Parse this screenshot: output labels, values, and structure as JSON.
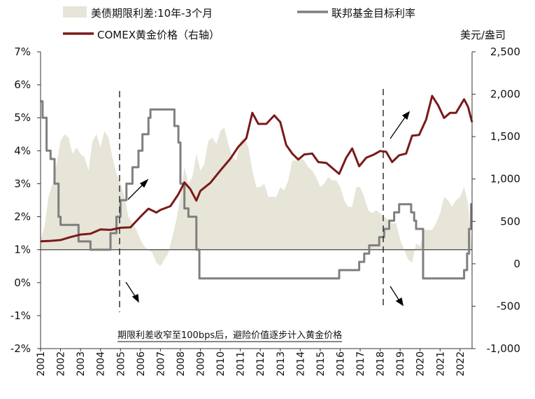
{
  "chart_data": {
    "type": "area+line",
    "title": "",
    "left_axis": {
      "ticks": [
        "-2%",
        "-1%",
        "0%",
        "1%",
        "2%",
        "3%",
        "4%",
        "5%",
        "6%",
        "7%"
      ],
      "values": [
        -2,
        -1,
        0,
        1,
        2,
        3,
        4,
        5,
        6,
        7
      ],
      "range": [
        -2,
        7
      ]
    },
    "right_axis": {
      "unit_label": "美元/盎司",
      "ticks": [
        "-1,000",
        "-500",
        "0",
        "500",
        "1,000",
        "1,500",
        "2,000",
        "2,500"
      ],
      "values": [
        -1000,
        -500,
        0,
        500,
        1000,
        1500,
        2000,
        2500
      ],
      "range": [
        -1000,
        2500
      ]
    },
    "x_axis": {
      "categories": [
        "2001",
        "2002",
        "2003",
        "2004",
        "2005",
        "2006",
        "2007",
        "2008",
        "2009",
        "2010",
        "2011",
        "2012",
        "2013",
        "2014",
        "2015",
        "2016",
        "2017",
        "2018",
        "2019",
        "2020",
        "2021",
        "2022"
      ],
      "range": [
        2001,
        2022.6
      ]
    },
    "legend": {
      "spread": "美债期限利差:10年-3个月",
      "fed": "联邦基金目标利率",
      "gold": "COMEX黄金价格（右轴）"
    },
    "annotation": "期限利差收窄至100bps后，避险价值逐步计入黄金价格",
    "series": [
      {
        "name": "美债期限利差:10年-3个月",
        "axis": "left",
        "style": "area",
        "color": "#e7e4d8",
        "points": [
          [
            2001.0,
            0.3
          ],
          [
            2001.2,
            0.7
          ],
          [
            2001.4,
            1.6
          ],
          [
            2001.6,
            2.0
          ],
          [
            2001.8,
            2.6
          ],
          [
            2002.0,
            3.3
          ],
          [
            2002.2,
            3.5
          ],
          [
            2002.4,
            3.4
          ],
          [
            2002.6,
            2.9
          ],
          [
            2002.8,
            3.1
          ],
          [
            2003.0,
            2.9
          ],
          [
            2003.2,
            2.8
          ],
          [
            2003.4,
            2.4
          ],
          [
            2003.6,
            3.3
          ],
          [
            2003.8,
            3.5
          ],
          [
            2004.0,
            3.1
          ],
          [
            2004.2,
            3.6
          ],
          [
            2004.4,
            3.4
          ],
          [
            2004.6,
            2.8
          ],
          [
            2004.8,
            2.3
          ],
          [
            2005.0,
            2.0
          ],
          [
            2005.2,
            1.6
          ],
          [
            2005.4,
            1.0
          ],
          [
            2005.6,
            0.8
          ],
          [
            2005.8,
            0.6
          ],
          [
            2006.0,
            0.3
          ],
          [
            2006.2,
            0.1
          ],
          [
            2006.4,
            0.0
          ],
          [
            2006.6,
            -0.1
          ],
          [
            2006.8,
            -0.4
          ],
          [
            2007.0,
            -0.5
          ],
          [
            2007.2,
            -0.3
          ],
          [
            2007.4,
            -0.1
          ],
          [
            2007.6,
            0.4
          ],
          [
            2007.8,
            0.9
          ],
          [
            2008.0,
            1.6
          ],
          [
            2008.2,
            2.5
          ],
          [
            2008.4,
            2.0
          ],
          [
            2008.6,
            2.2
          ],
          [
            2008.8,
            2.9
          ],
          [
            2009.0,
            2.4
          ],
          [
            2009.2,
            2.6
          ],
          [
            2009.4,
            3.3
          ],
          [
            2009.6,
            3.4
          ],
          [
            2009.8,
            3.2
          ],
          [
            2010.0,
            3.6
          ],
          [
            2010.2,
            3.7
          ],
          [
            2010.4,
            3.2
          ],
          [
            2010.6,
            2.8
          ],
          [
            2010.8,
            2.7
          ],
          [
            2011.0,
            3.3
          ],
          [
            2011.2,
            3.4
          ],
          [
            2011.4,
            3.1
          ],
          [
            2011.6,
            2.4
          ],
          [
            2011.8,
            1.9
          ],
          [
            2012.0,
            1.9
          ],
          [
            2012.2,
            2.0
          ],
          [
            2012.4,
            1.6
          ],
          [
            2012.6,
            1.6
          ],
          [
            2012.8,
            1.6
          ],
          [
            2013.0,
            1.9
          ],
          [
            2013.2,
            1.8
          ],
          [
            2013.4,
            2.1
          ],
          [
            2013.6,
            2.7
          ],
          [
            2013.8,
            2.7
          ],
          [
            2014.0,
            2.8
          ],
          [
            2014.2,
            2.7
          ],
          [
            2014.4,
            2.5
          ],
          [
            2014.6,
            2.4
          ],
          [
            2014.8,
            2.2
          ],
          [
            2015.0,
            1.9
          ],
          [
            2015.2,
            2.0
          ],
          [
            2015.4,
            2.2
          ],
          [
            2015.6,
            2.1
          ],
          [
            2015.8,
            2.1
          ],
          [
            2016.0,
            1.9
          ],
          [
            2016.2,
            1.5
          ],
          [
            2016.4,
            1.3
          ],
          [
            2016.6,
            1.3
          ],
          [
            2016.8,
            1.9
          ],
          [
            2017.0,
            1.9
          ],
          [
            2017.2,
            1.6
          ],
          [
            2017.4,
            1.2
          ],
          [
            2017.6,
            1.1
          ],
          [
            2017.8,
            1.2
          ],
          [
            2018.0,
            1.1
          ],
          [
            2018.2,
            1.0
          ],
          [
            2018.4,
            0.9
          ],
          [
            2018.6,
            0.8
          ],
          [
            2018.8,
            0.8
          ],
          [
            2019.0,
            0.3
          ],
          [
            2019.2,
            0.0
          ],
          [
            2019.4,
            -0.3
          ],
          [
            2019.6,
            -0.4
          ],
          [
            2019.8,
            0.2
          ],
          [
            2020.0,
            0.1
          ],
          [
            2020.2,
            0.6
          ],
          [
            2020.4,
            0.6
          ],
          [
            2020.6,
            0.6
          ],
          [
            2020.8,
            0.8
          ],
          [
            2021.0,
            1.1
          ],
          [
            2021.2,
            1.6
          ],
          [
            2021.4,
            1.5
          ],
          [
            2021.6,
            1.3
          ],
          [
            2021.8,
            1.5
          ],
          [
            2022.0,
            1.6
          ],
          [
            2022.2,
            1.9
          ],
          [
            2022.4,
            1.4
          ],
          [
            2022.6,
            0.0
          ]
        ]
      },
      {
        "name": "联邦基金目标利率",
        "axis": "left",
        "style": "step",
        "color": "#7f7f7f",
        "points": [
          [
            2001.0,
            5.5
          ],
          [
            2001.1,
            5.0
          ],
          [
            2001.3,
            4.0
          ],
          [
            2001.5,
            3.75
          ],
          [
            2001.7,
            3.0
          ],
          [
            2001.9,
            2.0
          ],
          [
            2002.0,
            1.75
          ],
          [
            2002.9,
            1.25
          ],
          [
            2003.5,
            1.0
          ],
          [
            2004.5,
            1.5
          ],
          [
            2004.8,
            2.0
          ],
          [
            2005.0,
            2.5
          ],
          [
            2005.3,
            3.0
          ],
          [
            2005.6,
            3.5
          ],
          [
            2005.9,
            4.0
          ],
          [
            2006.1,
            4.5
          ],
          [
            2006.4,
            5.0
          ],
          [
            2006.5,
            5.25
          ],
          [
            2007.7,
            4.75
          ],
          [
            2007.9,
            4.25
          ],
          [
            2008.0,
            3.0
          ],
          [
            2008.2,
            2.25
          ],
          [
            2008.4,
            2.0
          ],
          [
            2008.8,
            1.0
          ],
          [
            2008.95,
            0.13
          ],
          [
            2015.95,
            0.38
          ],
          [
            2016.95,
            0.63
          ],
          [
            2017.2,
            0.88
          ],
          [
            2017.45,
            1.13
          ],
          [
            2017.95,
            1.38
          ],
          [
            2018.2,
            1.63
          ],
          [
            2018.45,
            1.88
          ],
          [
            2018.7,
            2.13
          ],
          [
            2018.95,
            2.38
          ],
          [
            2019.55,
            2.13
          ],
          [
            2019.7,
            1.88
          ],
          [
            2019.8,
            1.63
          ],
          [
            2020.15,
            0.13
          ],
          [
            2022.2,
            0.38
          ],
          [
            2022.35,
            0.88
          ],
          [
            2022.45,
            1.63
          ],
          [
            2022.55,
            2.38
          ]
        ]
      },
      {
        "name": "COMEX黄金价格（右轴）",
        "axis": "right",
        "style": "line",
        "color": "#7a1a1a",
        "points": [
          [
            2001.0,
            265
          ],
          [
            2001.5,
            270
          ],
          [
            2002.0,
            280
          ],
          [
            2002.5,
            315
          ],
          [
            2003.0,
            345
          ],
          [
            2003.5,
            355
          ],
          [
            2004.0,
            405
          ],
          [
            2004.5,
            400
          ],
          [
            2005.0,
            425
          ],
          [
            2005.5,
            430
          ],
          [
            2006.0,
            555
          ],
          [
            2006.4,
            650
          ],
          [
            2006.8,
            605
          ],
          [
            2007.0,
            635
          ],
          [
            2007.5,
            680
          ],
          [
            2007.9,
            820
          ],
          [
            2008.2,
            960
          ],
          [
            2008.5,
            880
          ],
          [
            2008.8,
            745
          ],
          [
            2009.0,
            860
          ],
          [
            2009.5,
            955
          ],
          [
            2010.0,
            1100
          ],
          [
            2010.5,
            1240
          ],
          [
            2010.9,
            1380
          ],
          [
            2011.3,
            1480
          ],
          [
            2011.6,
            1780
          ],
          [
            2011.9,
            1650
          ],
          [
            2012.3,
            1650
          ],
          [
            2012.7,
            1750
          ],
          [
            2013.0,
            1670
          ],
          [
            2013.3,
            1400
          ],
          [
            2013.6,
            1300
          ],
          [
            2013.9,
            1230
          ],
          [
            2014.2,
            1290
          ],
          [
            2014.6,
            1300
          ],
          [
            2014.9,
            1200
          ],
          [
            2015.3,
            1190
          ],
          [
            2015.7,
            1110
          ],
          [
            2015.95,
            1060
          ],
          [
            2016.3,
            1250
          ],
          [
            2016.6,
            1360
          ],
          [
            2016.95,
            1150
          ],
          [
            2017.3,
            1250
          ],
          [
            2017.7,
            1290
          ],
          [
            2018.0,
            1330
          ],
          [
            2018.3,
            1320
          ],
          [
            2018.6,
            1200
          ],
          [
            2018.95,
            1280
          ],
          [
            2019.3,
            1300
          ],
          [
            2019.6,
            1510
          ],
          [
            2019.95,
            1520
          ],
          [
            2020.3,
            1700
          ],
          [
            2020.6,
            1980
          ],
          [
            2020.9,
            1870
          ],
          [
            2021.2,
            1720
          ],
          [
            2021.5,
            1780
          ],
          [
            2021.8,
            1780
          ],
          [
            2022.2,
            1940
          ],
          [
            2022.4,
            1850
          ],
          [
            2022.6,
            1670
          ]
        ]
      }
    ]
  }
}
